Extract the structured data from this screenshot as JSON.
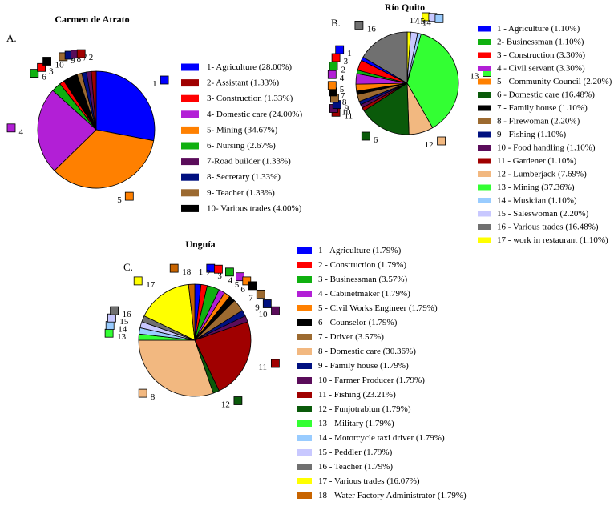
{
  "chart_data": [
    {
      "type": "pie",
      "panel": "A.",
      "title": "Carmen de Atrato",
      "legend_position": "right",
      "start_angle_deg": 0,
      "categories": [
        {
          "n": "1",
          "legend": "1- Agriculture  (28.00%)",
          "value": 28.0,
          "color": "#0000FF"
        },
        {
          "n": "2",
          "legend": "2- Assistant (1.33%)",
          "value": 1.33,
          "color": "#A00000"
        },
        {
          "n": "3",
          "legend": "3- Construction (1.33%)",
          "value": 1.33,
          "color": "#FF0000"
        },
        {
          "n": "4",
          "legend": "4- Domestic care (24.00%)",
          "value": 24.0,
          "color": "#B21FD6"
        },
        {
          "n": "5",
          "legend": "5- Mining (34.67%)",
          "value": 34.67,
          "color": "#FF8000"
        },
        {
          "n": "6",
          "legend": "6- Nursing (2.67%)",
          "value": 2.67,
          "color": "#10B010"
        },
        {
          "n": "7",
          "legend": "7-Road builder (1.33%)",
          "value": 1.33,
          "color": "#5A0C5A"
        },
        {
          "n": "8",
          "legend": "8- Secretary (1.33%)",
          "value": 1.33,
          "color": "#001080"
        },
        {
          "n": "9",
          "legend": "9- Teacher (1.33%)",
          "value": 1.33,
          "color": "#9C6A30"
        },
        {
          "n": "10",
          "legend": "10- Various trades (4.00%)",
          "value": 4.0,
          "color": "#000000"
        }
      ],
      "order": [
        "1",
        "5",
        "4",
        "6",
        "3",
        "10",
        "9",
        "8",
        "7",
        "2"
      ]
    },
    {
      "type": "pie",
      "panel": "B.",
      "title": "Río Quito",
      "legend_position": "right",
      "start_angle_deg": 0,
      "categories": [
        {
          "n": "1",
          "legend": "1 - Agriculture (1.10%)",
          "value": 1.1,
          "color": "#0000FF"
        },
        {
          "n": "2",
          "legend": "2- Businessman (1.10%)",
          "value": 1.1,
          "color": "#10B010"
        },
        {
          "n": "3",
          "legend": "3 - Construction (3.30%)",
          "value": 3.3,
          "color": "#FF0000"
        },
        {
          "n": "4",
          "legend": "4 - Civil servant (3.30%)",
          "value": 3.3,
          "color": "#B21FD6"
        },
        {
          "n": "5",
          "legend": "5 - Community Council (2.20%)",
          "value": 2.2,
          "color": "#FF8000"
        },
        {
          "n": "6",
          "legend": "6 - Domestic care (16.48%)",
          "value": 16.48,
          "color": "#0A5A0A"
        },
        {
          "n": "7",
          "legend": "7 - Family house (1.10%)",
          "value": 1.1,
          "color": "#000000"
        },
        {
          "n": "8",
          "legend": "8 - Firewoman (2.20%)",
          "value": 2.2,
          "color": "#9C6A30"
        },
        {
          "n": "9",
          "legend": "9 - Fishing (1.10%)",
          "value": 1.1,
          "color": "#001080"
        },
        {
          "n": "10",
          "legend": "10 - Food handling (1.10%)",
          "value": 1.1,
          "color": "#5A0C5A"
        },
        {
          "n": "11",
          "legend": "11 - Gardener (1.10%)",
          "value": 1.1,
          "color": "#A00000"
        },
        {
          "n": "12",
          "legend": "12 - Lumberjack (7.69%)",
          "value": 7.69,
          "color": "#F2B880"
        },
        {
          "n": "13",
          "legend": "13 - Mining (37.36%)",
          "value": 37.36,
          "color": "#33FF33"
        },
        {
          "n": "14",
          "legend": "14 - Musician (1.10%)",
          "value": 1.1,
          "color": "#99CCFF"
        },
        {
          "n": "15",
          "legend": "15 - Saleswoman (2.20%)",
          "value": 2.2,
          "color": "#C8C8FF"
        },
        {
          "n": "16",
          "legend": "16 - Various trades (16.48%)",
          "value": 16.48,
          "color": "#707070"
        },
        {
          "n": "17",
          "legend": "17 - work in restaurant (1.10%)",
          "value": 1.1,
          "color": "#FFFF00"
        }
      ],
      "order": [
        "17",
        "15",
        "14",
        "13",
        "12",
        "6",
        "11",
        "10",
        "9",
        "8",
        "7",
        "5",
        "4",
        "2",
        "3",
        "1",
        "16"
      ]
    },
    {
      "type": "pie",
      "panel": "C.",
      "title": "Unguía",
      "legend_position": "right",
      "start_angle_deg": 0,
      "categories": [
        {
          "n": "1",
          "legend": "1 - Agriculture (1.79%)",
          "value": 1.79,
          "color": "#0000FF"
        },
        {
          "n": "2",
          "legend": "2 - Construction (1.79%)",
          "value": 1.79,
          "color": "#FF0000"
        },
        {
          "n": "3",
          "legend": "3 - Businessman (3.57%)",
          "value": 3.57,
          "color": "#10B010"
        },
        {
          "n": "4",
          "legend": "4 - Cabinetmaker (1.79%)",
          "value": 1.79,
          "color": "#B21FD6"
        },
        {
          "n": "5",
          "legend": "5 - Civil Works Engineer (1.79%)",
          "value": 1.79,
          "color": "#FF8000"
        },
        {
          "n": "6",
          "legend": "6 - Counselor (1.79%)",
          "value": 1.79,
          "color": "#000000"
        },
        {
          "n": "7",
          "legend": "7 - Driver (3.57%)",
          "value": 3.57,
          "color": "#9C6A30"
        },
        {
          "n": "8",
          "legend": "8 - Domestic care (30.36%)",
          "value": 30.36,
          "color": "#F2B880"
        },
        {
          "n": "9",
          "legend": "9 - Family house (1.79%)",
          "value": 1.79,
          "color": "#001080"
        },
        {
          "n": "10",
          "legend": "10 - Farmer Producer (1.79%)",
          "value": 1.79,
          "color": "#5A0C5A"
        },
        {
          "n": "11",
          "legend": "11 - Fishing (23.21%)",
          "value": 23.21,
          "color": "#A00000"
        },
        {
          "n": "12",
          "legend": "12 - Funjotrabiun (1.79%)",
          "value": 1.79,
          "color": "#0A5A0A"
        },
        {
          "n": "13",
          "legend": "13 - Military (1.79%)",
          "value": 1.79,
          "color": "#33FF33"
        },
        {
          "n": "14",
          "legend": "14 - Motorcycle taxi driver (1.79%)",
          "value": 1.79,
          "color": "#99CCFF"
        },
        {
          "n": "15",
          "legend": "15 - Peddler (1.79%)",
          "value": 1.79,
          "color": "#C8C8FF"
        },
        {
          "n": "16",
          "legend": "16 - Teacher (1.79%)",
          "value": 1.79,
          "color": "#707070"
        },
        {
          "n": "17",
          "legend": "17 - Various trades (16.07%)",
          "value": 16.07,
          "color": "#FFFF00"
        },
        {
          "n": "18",
          "legend": "18 - Water Factory Administrator (1.79%)",
          "value": 1.79,
          "color": "#C86400"
        }
      ],
      "order": [
        "1",
        "2",
        "3",
        "4",
        "5",
        "6",
        "7",
        "9",
        "10",
        "11",
        "12",
        "8",
        "13",
        "14",
        "15",
        "16",
        "17",
        "18"
      ]
    }
  ]
}
